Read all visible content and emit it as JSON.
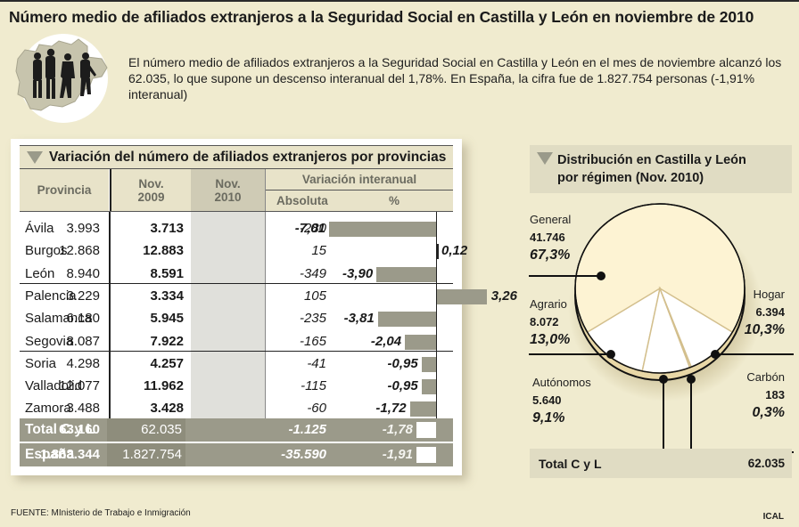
{
  "title": "Número medio de afiliados extranjeros a la Seguridad Social en Castilla y León en noviembre de 2010",
  "intro": "El número medio de afiliados extranjeros a la Seguridad Social en Castilla y León en el mes de noviembre alcanzó los 62.035, lo que supone un descenso interanual del 1,78%. En España, la cifra fue de 1.827.754 personas (-1,91% interanual)",
  "logo_icon": "people-silhouettes-on-castilla-leon-map-icon",
  "colors": {
    "background": "#f0ebcf",
    "header_bg": "#e8e3c9",
    "bar": "#9b9a8a",
    "total_row": "#9b9a8a",
    "pie_fill": "#fdf3d3",
    "pie_small_slices": "#ffffff",
    "pie_divider": "#d3bf8d"
  },
  "table": {
    "title": "Variación del número de afiliados extranjeros por provincias",
    "headers": {
      "provincia": "Provincia",
      "nov2009": "Nov.\n2009",
      "nov2009_l1": "Nov.",
      "nov2009_l2": "2009",
      "nov2010_l1": "Nov.",
      "nov2010_l2": "2010",
      "variacion": "Variación interanual",
      "absoluta": "Absoluta",
      "pct": "%"
    },
    "rows": [
      {
        "provincia": "Ávila",
        "nov2009": "3.993",
        "nov2010": "3.713",
        "absoluta": "-280",
        "pct": "-7,01",
        "pct_value": -7.01
      },
      {
        "provincia": "Burgos",
        "nov2009": "12.868",
        "nov2010": "12.883",
        "absoluta": "15",
        "pct": "0,12",
        "pct_value": 0.12
      },
      {
        "provincia": "León",
        "nov2009": "8.940",
        "nov2010": "8.591",
        "absoluta": "-349",
        "pct": "-3,90",
        "pct_value": -3.9
      },
      {
        "provincia": "Palencia",
        "nov2009": "3.229",
        "nov2010": "3.334",
        "absoluta": "105",
        "pct": "3,26",
        "pct_value": 3.26
      },
      {
        "provincia": "Salamanca",
        "nov2009": "6.180",
        "nov2010": "5.945",
        "absoluta": "-235",
        "pct": "-3,81",
        "pct_value": -3.81
      },
      {
        "provincia": "Segovia",
        "nov2009": "8.087",
        "nov2010": "7.922",
        "absoluta": "-165",
        "pct": "-2,04",
        "pct_value": -2.04
      },
      {
        "provincia": "Soria",
        "nov2009": "4.298",
        "nov2010": "4.257",
        "absoluta": "-41",
        "pct": "-0,95",
        "pct_value": -0.95
      },
      {
        "provincia": "Valladolid",
        "nov2009": "12.077",
        "nov2010": "11.962",
        "absoluta": "-115",
        "pct": "-0,95",
        "pct_value": -0.95
      },
      {
        "provincia": "Zamora",
        "nov2009": "3.488",
        "nov2010": "3.428",
        "absoluta": "-60",
        "pct": "-1,72",
        "pct_value": -1.72
      }
    ],
    "totals": [
      {
        "provincia": "Total C y L",
        "nov2009": "63.160",
        "nov2010": "62.035",
        "absoluta": "-1.125",
        "pct": "-1,78",
        "pct_value": -1.78
      },
      {
        "provincia": "España",
        "nov2009": "1.863.344",
        "nov2010": "1.827.754",
        "absoluta": "-35.590",
        "pct": "-1,91",
        "pct_value": -1.91
      }
    ]
  },
  "pie": {
    "title_l1": "Distribución en Castilla y León",
    "title_l2": "por régimen (Nov. 2010)",
    "total_label": "Total C y L",
    "total_value": "62.035"
  },
  "chart_data": [
    {
      "type": "bar",
      "title": "Variación del número de afiliados extranjeros por provincias",
      "orientation": "horizontal",
      "xlabel": "Variación interanual %",
      "categories": [
        "Ávila",
        "Burgos",
        "León",
        "Palencia",
        "Salamanca",
        "Segovia",
        "Soria",
        "Valladolid",
        "Zamora",
        "Total C y L",
        "España"
      ],
      "values": [
        -7.01,
        0.12,
        -3.9,
        3.26,
        -3.81,
        -2.04,
        -0.95,
        -0.95,
        -1.72,
        -1.78,
        -1.91
      ],
      "grid": false
    },
    {
      "type": "pie",
      "title": "Distribución en Castilla y León por régimen (Nov. 2010)",
      "categories": [
        "General",
        "Agrario",
        "Autónomos",
        "Carbón",
        "Hogar"
      ],
      "values": [
        41746,
        8072,
        5640,
        183,
        6394
      ],
      "value_labels": [
        "41.746",
        "8.072",
        "5.640",
        "183",
        "6.394"
      ],
      "percent_labels": [
        "67,3%",
        "13,0%",
        "9,1%",
        "0,3%",
        "10,3%"
      ],
      "percents": [
        67.3,
        13.0,
        9.1,
        0.3,
        10.3
      ],
      "total": 62035
    }
  ],
  "source": "FUENTE: MInisterio de Trabajo e Inmigración",
  "credit": "ICAL"
}
